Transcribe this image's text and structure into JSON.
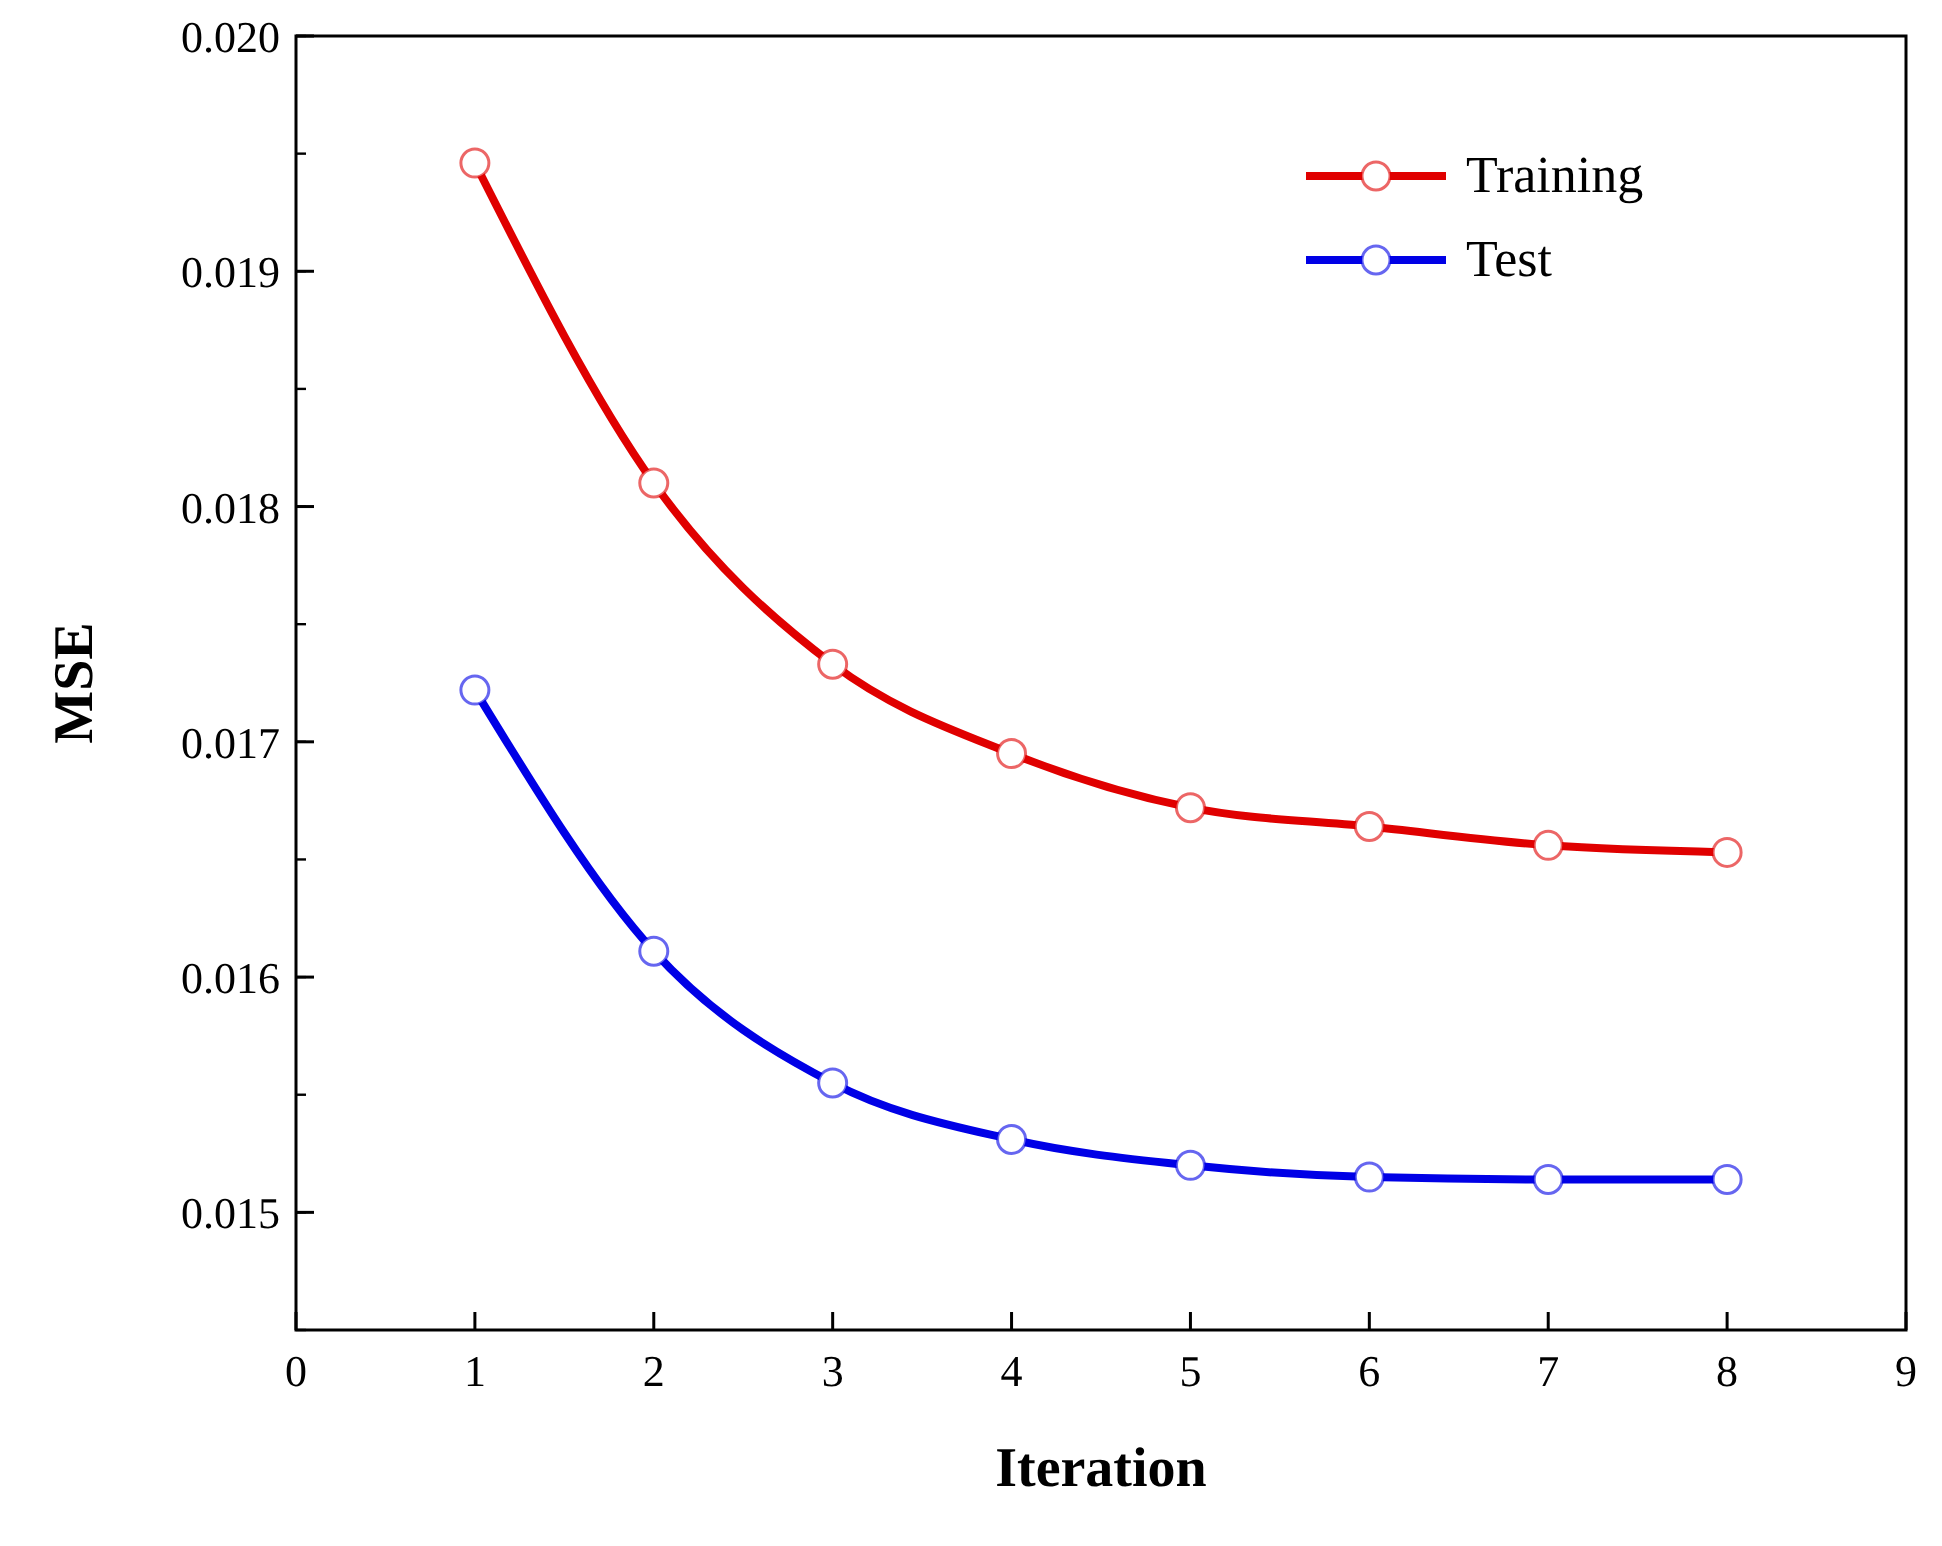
{
  "chart_data": {
    "type": "line",
    "xlabel": "Iteration",
    "ylabel": "MSE",
    "x": [
      1,
      2,
      3,
      4,
      5,
      6,
      7,
      8
    ],
    "series": [
      {
        "name": "Training",
        "color": "#e00000",
        "values": [
          0.01946,
          0.0181,
          0.01733,
          0.01695,
          0.01672,
          0.01664,
          0.01656,
          0.01653
        ]
      },
      {
        "name": "Test",
        "color": "#0000e6",
        "values": [
          0.01722,
          0.01611,
          0.01555,
          0.01531,
          0.0152,
          0.01515,
          0.01514,
          0.01514
        ]
      }
    ],
    "xlim": [
      0,
      9
    ],
    "xticks": [
      0,
      1,
      2,
      3,
      4,
      5,
      6,
      7,
      8,
      9
    ],
    "ylim": [
      0.0145,
      0.02
    ],
    "yticks": [
      0.015,
      0.016,
      0.017,
      0.018,
      0.019,
      {
        "value": 0.02,
        "label": "0.020"
      }
    ],
    "marker": "circle",
    "line_style": "solid",
    "legend": "top right",
    "grid": false
  }
}
